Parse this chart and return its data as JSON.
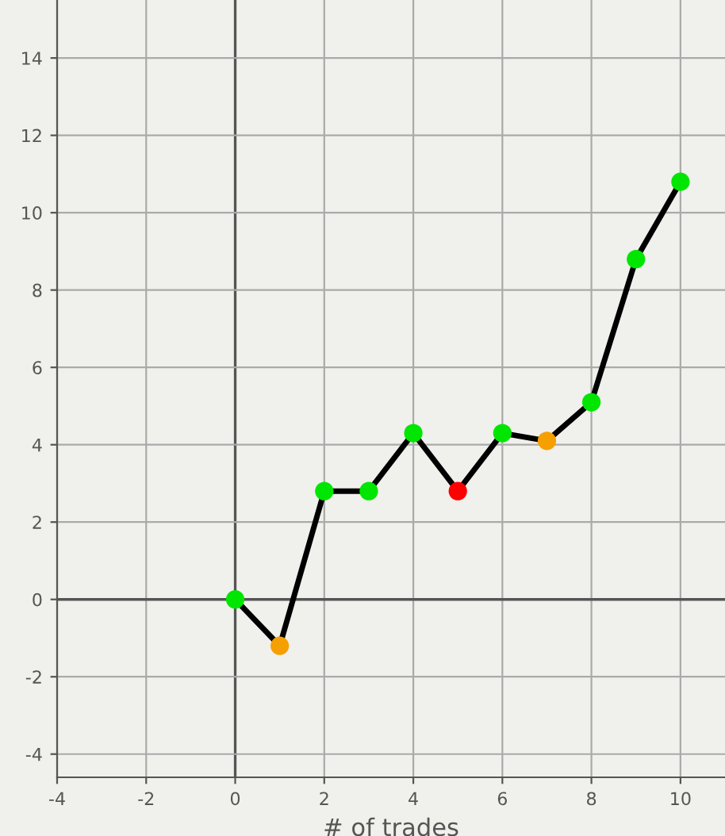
{
  "chart_data": {
    "type": "line",
    "xlabel": "# of trades",
    "x": [
      0,
      1,
      2,
      3,
      4,
      5,
      6,
      7,
      8,
      9,
      10
    ],
    "series": [
      {
        "color": "#000000",
        "colors": [
          "#00e600",
          "#f5a000",
          "#00e600",
          "#00e600",
          "#00e600",
          "#ff0000",
          "#00e600",
          "#f5a000",
          "#00e600",
          "#00e600",
          "#00e600"
        ],
        "values": [
          0,
          -1.2,
          2.8,
          2.8,
          4.3,
          2.8,
          4.3,
          4.1,
          5.1,
          8.8,
          10.8
        ]
      }
    ],
    "xlim": [
      -4,
      11
    ],
    "ylim": [
      -4.6,
      15.5
    ],
    "xticks": [
      -4,
      -2,
      0,
      2,
      4,
      6,
      8,
      10
    ],
    "yticks": [
      -4,
      -2,
      0,
      2,
      4,
      6,
      8,
      10,
      12,
      14
    ],
    "grid": true,
    "marker": "circle",
    "line_style": "solid"
  }
}
